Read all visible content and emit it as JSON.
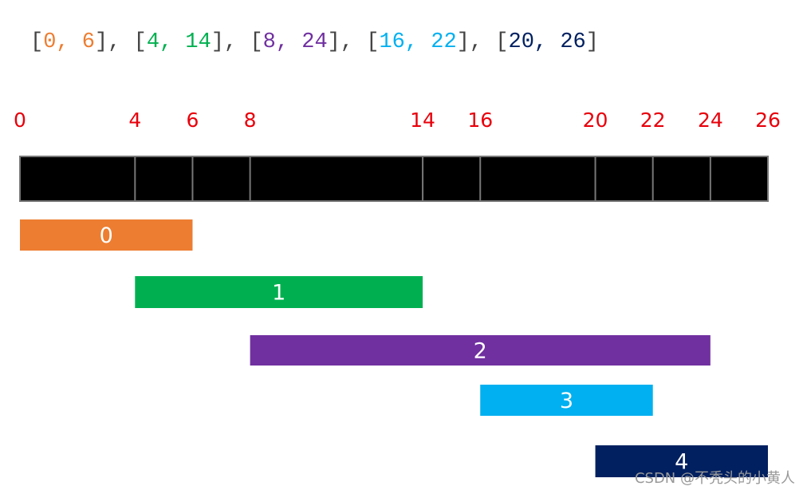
{
  "header": {
    "parts": [
      {
        "text": "[",
        "color": "#444444"
      },
      {
        "text": "0, 6",
        "color": "#ed7d31"
      },
      {
        "text": "], [",
        "color": "#444444"
      },
      {
        "text": "4, 14",
        "color": "#00b050"
      },
      {
        "text": "], [",
        "color": "#444444"
      },
      {
        "text": "8, 24",
        "color": "#7030a0"
      },
      {
        "text": "], [",
        "color": "#444444"
      },
      {
        "text": "16, 22",
        "color": "#00b0f0"
      },
      {
        "text": "], [",
        "color": "#444444"
      },
      {
        "text": "20, 26",
        "color": "#002060"
      },
      {
        "text": "]",
        "color": "#444444"
      }
    ]
  },
  "ruler": {
    "range": [
      0,
      26
    ],
    "ticks": [
      0,
      4,
      6,
      8,
      14,
      16,
      20,
      22,
      24,
      26
    ]
  },
  "bars": [
    {
      "label": "0",
      "start": 0,
      "end": 6,
      "color": "#ed7d31"
    },
    {
      "label": "1",
      "start": 4,
      "end": 14,
      "color": "#00b050"
    },
    {
      "label": "2",
      "start": 8,
      "end": 24,
      "color": "#7030a0"
    },
    {
      "label": "3",
      "start": 16,
      "end": 22,
      "color": "#00b0f0"
    },
    {
      "label": "4",
      "start": 20,
      "end": 26,
      "color": "#002060"
    }
  ],
  "watermark": "CSDN @不秃头的小黄人"
}
